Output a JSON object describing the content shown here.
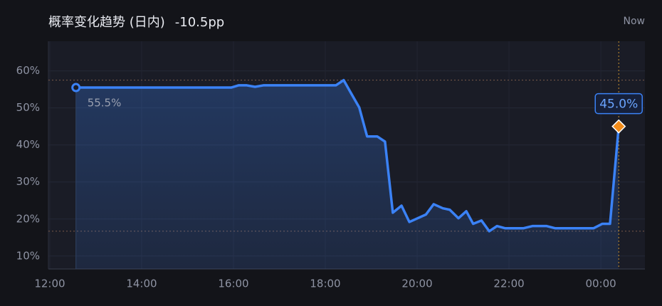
{
  "chart_data": {
    "type": "area",
    "title": "概率变化趋势 (日内)",
    "change": "-10.5pp",
    "now_label": "Now",
    "x": [
      12.57,
      15.95,
      16.11,
      16.29,
      16.47,
      16.65,
      18.23,
      18.4,
      18.56,
      18.74,
      18.91,
      19.13,
      19.3,
      19.47,
      19.66,
      19.83,
      20.19,
      20.36,
      20.56,
      20.71,
      20.9,
      21.07,
      21.22,
      21.4,
      21.57,
      21.74,
      21.92,
      22.31,
      22.51,
      22.82,
      23.01,
      23.84,
      24.03,
      24.2,
      24.39
    ],
    "series": [
      {
        "color": "#3b82f6",
        "values": [
          55.5,
          55.5,
          56.1,
          56.1,
          55.7,
          56.1,
          56.1,
          57.5,
          54.0,
          50.1,
          42.3,
          42.3,
          40.9,
          21.7,
          23.6,
          19.2,
          21.2,
          24.0,
          22.9,
          22.5,
          20.2,
          22.1,
          18.7,
          19.6,
          16.7,
          18.1,
          17.5,
          17.5,
          18.1,
          18.1,
          17.5,
          17.5,
          18.7,
          18.7,
          45.0
        ],
        "value_labels": [
          "55.5%",
          null,
          null,
          null,
          null,
          null,
          null,
          null,
          null,
          null,
          null,
          null,
          null,
          null,
          null,
          null,
          null,
          null,
          null,
          null,
          null,
          null,
          null,
          null,
          null,
          null,
          null,
          null,
          null,
          null,
          null,
          null,
          null,
          null,
          "45.0%"
        ]
      }
    ],
    "reference_lines": [
      57.5,
      16.7
    ],
    "xlim": [
      11.97,
      24.96
    ],
    "xticks": [
      {
        "value": 12,
        "label": "12:00"
      },
      {
        "value": 14,
        "label": "14:00"
      },
      {
        "value": 16,
        "label": "16:00"
      },
      {
        "value": 18,
        "label": "18:00"
      },
      {
        "value": 20,
        "label": "20:00"
      },
      {
        "value": 22,
        "label": "22:00"
      },
      {
        "value": 24,
        "label": "00:00"
      }
    ],
    "ylim": [
      6.5,
      68
    ],
    "yticks": [
      {
        "value": 10,
        "label": "10%"
      },
      {
        "value": 20,
        "label": "20%"
      },
      {
        "value": 30,
        "label": "30%"
      },
      {
        "value": 40,
        "label": "40%"
      },
      {
        "value": 50,
        "label": "50%"
      },
      {
        "value": 60,
        "label": "60%"
      }
    ],
    "grid": true
  }
}
